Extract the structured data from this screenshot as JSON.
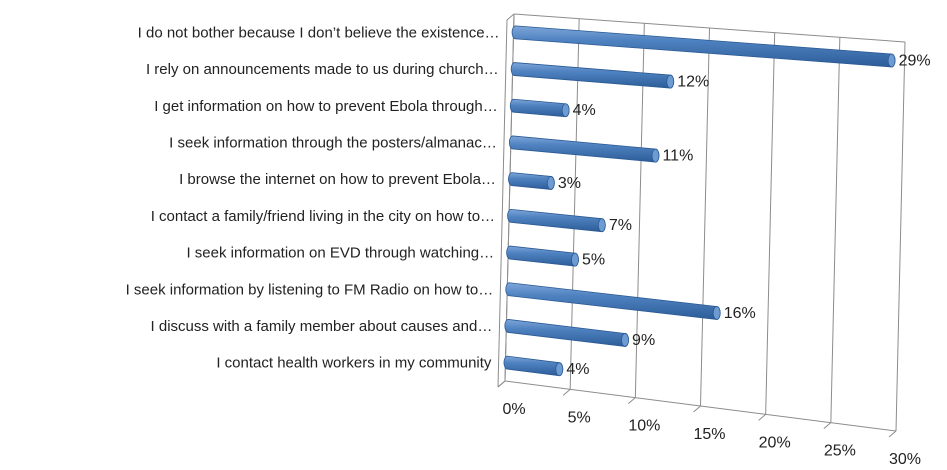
{
  "chart_data": {
    "type": "bar",
    "orientation": "horizontal",
    "style": "3d-cylinder",
    "categories": [
      "I do not bother because I don’t believe the existence…",
      "I rely on announcements made to us during church…",
      "I get information on how to prevent Ebola through…",
      "I seek information through the posters/almanac…",
      "I browse the internet on how to prevent Ebola…",
      "I contact a family/friend living in the city on how to…",
      "I seek information on EVD through watching…",
      "I seek information by listening to FM Radio on how to…",
      "I discuss with a family member about causes and…",
      "I contact health workers in my community"
    ],
    "values": [
      29,
      12,
      4,
      11,
      3,
      7,
      5,
      16,
      9,
      4
    ],
    "data_labels": [
      "29%",
      "12%",
      "4%",
      "11%",
      "3%",
      "7%",
      "5%",
      "16%",
      "9%",
      "4%"
    ],
    "x_ticks": [
      "0%",
      "5%",
      "10%",
      "15%",
      "20%",
      "25%",
      "30%"
    ],
    "xlim": [
      0,
      30
    ],
    "grid": true,
    "legend": "none",
    "bar_color": "#4a7ebb",
    "bar_edge_color": "#2a5a94",
    "title": "",
    "xlabel": "",
    "ylabel": ""
  }
}
